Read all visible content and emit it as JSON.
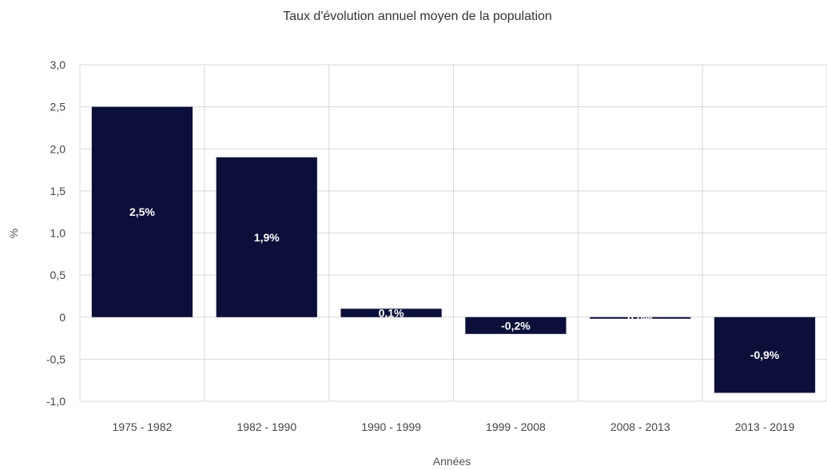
{
  "chart_data": {
    "type": "bar",
    "title": "Taux d'évolution annuel moyen de la population",
    "xlabel": "Années",
    "ylabel": "%",
    "categories": [
      "1975 - 1982",
      "1982 - 1990",
      "1990 - 1999",
      "1999 - 2008",
      "2008 - 2013",
      "2013 - 2019"
    ],
    "values": [
      2.5,
      1.9,
      0.1,
      -0.2,
      0.0,
      -0.9
    ],
    "data_labels": [
      "2,5%",
      "1,9%",
      "0,1%",
      "-0,2%",
      "0,0%",
      "-0,9%"
    ],
    "yticks": [
      3.0,
      2.5,
      2.0,
      1.5,
      1.0,
      0.5,
      0,
      -0.5,
      -1.0
    ],
    "ytick_labels": [
      "3,0",
      "2,5",
      "2,0",
      "1,5",
      "1,0",
      "0,5",
      "0",
      "-0,5",
      "-1,0"
    ],
    "ylim": [
      -1.0,
      3.0
    ],
    "grid": true,
    "legend": "none",
    "bar_color": "#0b0f3a",
    "grid_color": "#d8d8d8"
  }
}
